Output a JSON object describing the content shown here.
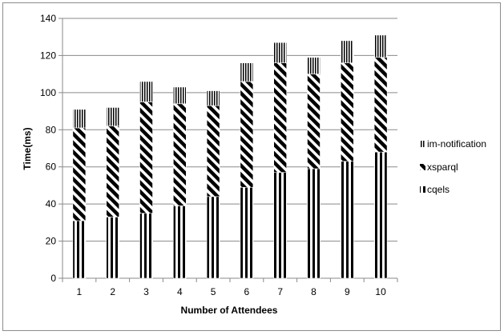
{
  "chart_data": {
    "type": "bar",
    "stacked": true,
    "categories": [
      "1",
      "2",
      "3",
      "4",
      "5",
      "6",
      "7",
      "8",
      "9",
      "10"
    ],
    "series": [
      {
        "name": "cqels",
        "values": [
          31,
          33,
          35,
          39,
          44,
          49,
          57,
          59,
          63,
          68
        ],
        "pattern": "vertical-stripes"
      },
      {
        "name": "xsparql",
        "values": [
          50,
          49,
          60,
          55,
          49,
          57,
          59,
          51,
          53,
          51
        ],
        "pattern": "diagonal-stripes"
      },
      {
        "name": "im-notification",
        "values": [
          10,
          10,
          11,
          9,
          8,
          10,
          11,
          9,
          12,
          12
        ],
        "pattern": "thin-vertical-stripes"
      }
    ],
    "legend_order": [
      "im-notification",
      "xsparql",
      "cqels"
    ],
    "xlabel": "Number of Attendees",
    "ylabel": "Time(ms)",
    "ylim": [
      0,
      140
    ],
    "yticks": [
      "0",
      "20",
      "40",
      "60",
      "80",
      "100",
      "120",
      "140"
    ],
    "grid": true,
    "legend_position": "right"
  }
}
